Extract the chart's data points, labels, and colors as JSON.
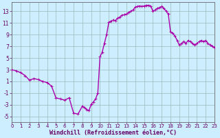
{
  "x_values": [
    0,
    0.5,
    1,
    1.5,
    2,
    2.5,
    3,
    3.5,
    4,
    4.5,
    5,
    5.5,
    6,
    6.5,
    7,
    7.5,
    8,
    8.25,
    8.5,
    8.75,
    9,
    9.25,
    9.5,
    9.75,
    10,
    10.25,
    10.5,
    10.75,
    11,
    11.25,
    11.5,
    11.75,
    12,
    12.25,
    12.5,
    12.75,
    13,
    13.25,
    13.5,
    13.75,
    14,
    14.25,
    14.5,
    14.75,
    15,
    15.25,
    15.5,
    15.75,
    16,
    16.25,
    16.5,
    16.75,
    17,
    17.25,
    17.5,
    17.75,
    18,
    18.25,
    18.5,
    18.75,
    19,
    19.25,
    19.5,
    19.75,
    20,
    20.25,
    20.5,
    20.75,
    21,
    21.25,
    21.5,
    21.75,
    22,
    22.25,
    22.5,
    22.75,
    23
  ],
  "y_values": [
    3,
    2.8,
    2.5,
    2.0,
    1.2,
    1.5,
    1.3,
    1.0,
    0.8,
    0.2,
    -1.8,
    -2.0,
    -2.2,
    -1.8,
    -4.4,
    -4.6,
    -3.2,
    -3.5,
    -3.8,
    -4.0,
    -2.9,
    -2.5,
    -2.0,
    -1.0,
    5.2,
    6.0,
    7.5,
    9.0,
    11.1,
    11.3,
    11.5,
    11.4,
    11.8,
    12.0,
    12.3,
    12.4,
    12.5,
    12.8,
    13.0,
    13.2,
    13.7,
    13.8,
    13.9,
    13.8,
    13.9,
    14.0,
    14.0,
    13.9,
    13.0,
    13.2,
    13.5,
    13.6,
    13.8,
    13.5,
    13.0,
    12.5,
    9.5,
    9.2,
    8.8,
    8.0,
    7.2,
    7.5,
    7.8,
    7.5,
    8.0,
    7.8,
    7.5,
    7.2,
    7.5,
    7.8,
    8.0,
    7.8,
    8.0,
    7.5,
    7.2,
    7.0,
    6.8
  ],
  "line_color": "#aa00aa",
  "marker_color": "#aa00aa",
  "bg_color": "#cceeff",
  "grid_color": "#99bbbb",
  "axis_color": "#666666",
  "tick_color": "#660066",
  "xlabel": "Windchill (Refroidissement éolien,°C)",
  "xlim": [
    0,
    23
  ],
  "ylim": [
    -6,
    14.5
  ],
  "yticks": [
    -5,
    -3,
    -1,
    1,
    3,
    5,
    7,
    9,
    11,
    13
  ],
  "xticks": [
    0,
    1,
    2,
    3,
    4,
    5,
    6,
    7,
    8,
    9,
    10,
    11,
    12,
    13,
    14,
    15,
    16,
    17,
    18,
    19,
    20,
    21,
    22,
    23
  ],
  "marker_size": 3,
  "line_width": 1.0,
  "font_color": "#660066"
}
